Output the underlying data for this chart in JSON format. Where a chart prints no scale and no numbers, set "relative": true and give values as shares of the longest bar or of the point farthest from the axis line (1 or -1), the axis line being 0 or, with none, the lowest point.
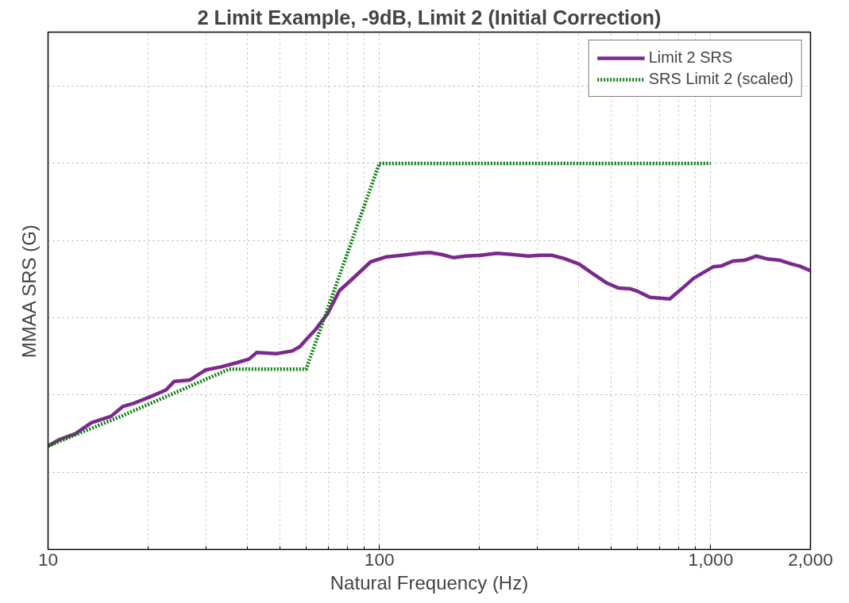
{
  "chart_data": {
    "type": "line",
    "title": "2 Limit Example, -9dB, Limit 2 (Initial Correction)",
    "xlabel": "Natural Frequency (Hz)",
    "ylabel": "MMAA SRS (G)",
    "relative": true,
    "log": "x",
    "xlim": [
      10,
      2000
    ],
    "xticks": [
      10,
      100,
      {
        "value": 1000,
        "label": "1,000"
      },
      {
        "value": 2000,
        "label": "2,000"
      }
    ],
    "grid": true,
    "legend": "top right",
    "series": [
      {
        "name": "Limit 2 SRS",
        "color": "#7b2a8c",
        "line_style": "solid",
        "x": [
          10,
          10.85,
          12.1,
          13.5,
          15.5,
          16.8,
          18.2,
          20.4,
          22.7,
          24,
          26.8,
          29.9,
          33.3,
          37.2,
          40.4,
          42.6,
          48.9,
          54.5,
          57.5,
          60.8,
          64.2,
          69.7,
          75.7,
          84.4,
          94.1,
          105,
          117,
          131,
          142,
          154,
          167,
          182,
          202,
          226,
          252,
          281,
          305,
          331,
          360,
          401,
          436,
          486,
          527,
          573,
          604,
          656,
          752,
          817,
          887,
          1016,
          1074,
          1166,
          1265,
          1374,
          1490,
          1619,
          1757,
          1854,
          2000
        ],
        "values": [
          0.268,
          0.285,
          0.3,
          0.328,
          0.345,
          0.37,
          0.379,
          0.396,
          0.413,
          0.435,
          0.439,
          0.465,
          0.473,
          0.484,
          0.493,
          0.51,
          0.507,
          0.514,
          0.525,
          0.548,
          0.57,
          0.61,
          0.67,
          0.707,
          0.745,
          0.758,
          0.762,
          0.767,
          0.769,
          0.764,
          0.756,
          0.76,
          0.762,
          0.767,
          0.764,
          0.76,
          0.762,
          0.762,
          0.754,
          0.739,
          0.717,
          0.69,
          0.677,
          0.675,
          0.668,
          0.653,
          0.649,
          0.675,
          0.702,
          0.732,
          0.734,
          0.747,
          0.749,
          0.76,
          0.752,
          0.749,
          0.739,
          0.734,
          0.722
        ]
      },
      {
        "name": "SRS Limit 2 (scaled)",
        "color": "#0a7d0a",
        "line_style": "dotted",
        "x": [
          10,
          16.4,
          35.2,
          60.1,
          100,
          1000
        ],
        "values": [
          0.268,
          0.343,
          0.467,
          0.467,
          1.0,
          1.0
        ]
      }
    ]
  }
}
